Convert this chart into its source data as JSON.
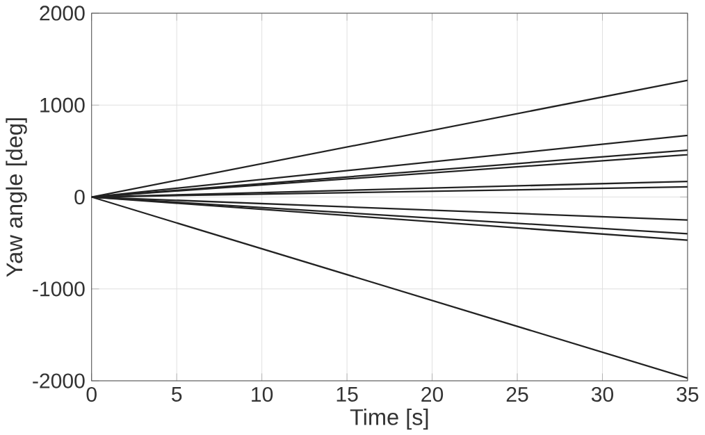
{
  "chart_data": {
    "type": "line",
    "xlabel": "Time [s]",
    "ylabel": "Yaw angle [deg]",
    "x": [
      0,
      35
    ],
    "series": [
      {
        "color": "#222222",
        "values": [
          0,
          1270
        ]
      },
      {
        "color": "#222222",
        "values": [
          0,
          670
        ]
      },
      {
        "color": "#222222",
        "values": [
          0,
          510
        ]
      },
      {
        "color": "#222222",
        "values": [
          0,
          460
        ]
      },
      {
        "color": "#222222",
        "values": [
          0,
          170
        ]
      },
      {
        "color": "#222222",
        "values": [
          0,
          110
        ]
      },
      {
        "color": "#222222",
        "values": [
          0,
          -250
        ]
      },
      {
        "color": "#222222",
        "values": [
          0,
          -400
        ]
      },
      {
        "color": "#222222",
        "values": [
          0,
          -470
        ]
      },
      {
        "color": "#222222",
        "values": [
          0,
          -1970
        ]
      }
    ],
    "xlim": [
      0,
      35
    ],
    "ylim": [
      -2000,
      2000
    ],
    "xticks": [
      0,
      5,
      10,
      15,
      20,
      25,
      30,
      35
    ],
    "yticks": [
      -2000,
      -1000,
      0,
      1000,
      2000
    ],
    "grid": true
  }
}
